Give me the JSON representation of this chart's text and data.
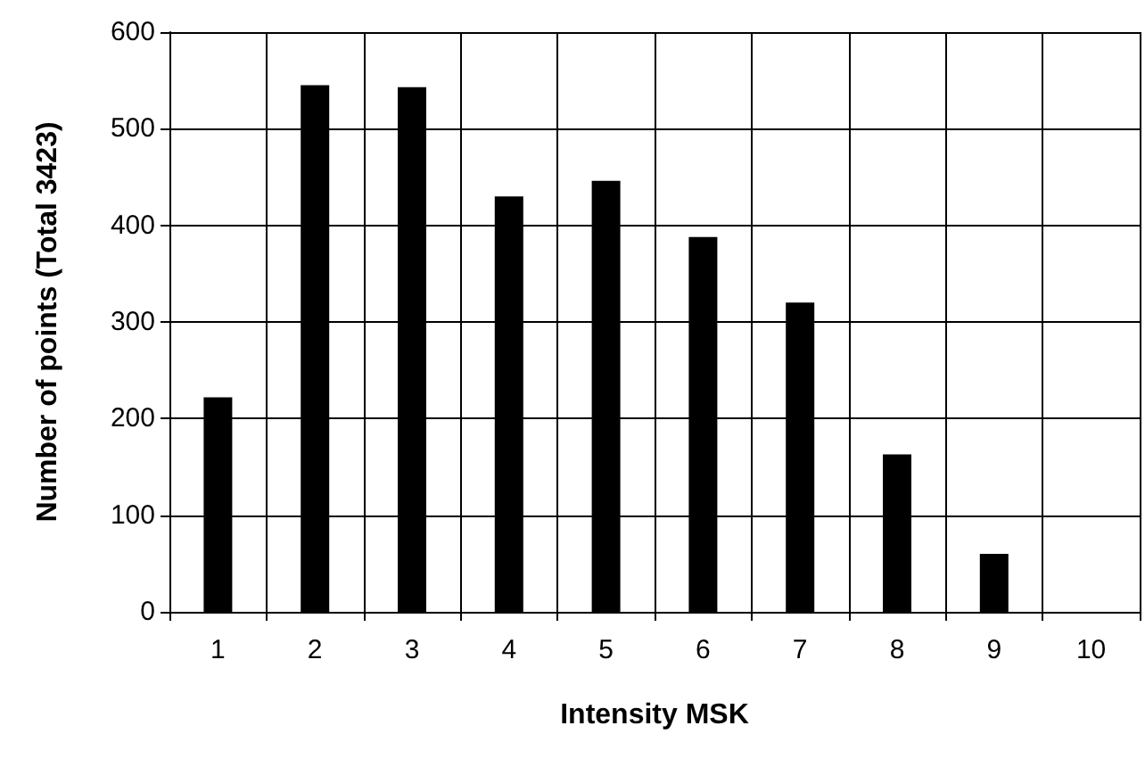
{
  "chart_data": {
    "type": "bar",
    "xlabel": "Intensity MSK",
    "ylabel": "Number of points (Total 3423)",
    "categories": [
      "1",
      "2",
      "3",
      "4",
      "5",
      "6",
      "7",
      "8",
      "9",
      "10"
    ],
    "values": [
      222,
      545,
      543,
      430,
      446,
      388,
      320,
      163,
      60,
      0
    ],
    "color": "#000000",
    "ylim": [
      0,
      600
    ],
    "yticks": [
      0,
      100,
      200,
      300,
      400,
      500,
      600
    ],
    "grid": true
  }
}
